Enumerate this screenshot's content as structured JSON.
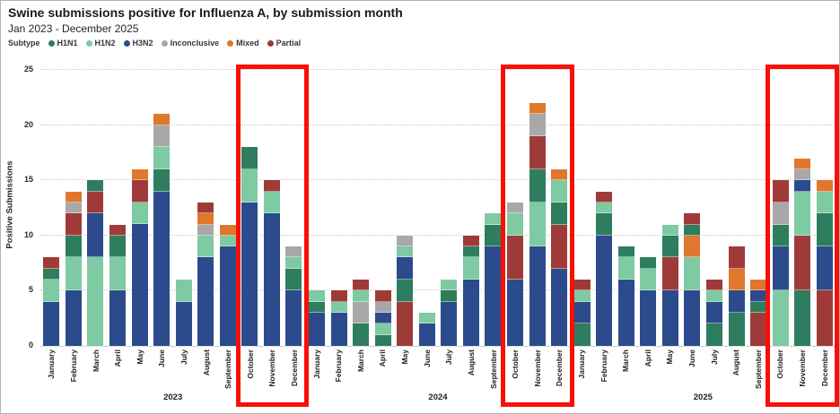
{
  "header": {
    "title": "Swine submissions positive for Influenza A, by submission month",
    "subtitle": "Jan 2023 - December 2025"
  },
  "legend": {
    "label": "Subtype",
    "items": [
      {
        "name": "H1N1",
        "color": "#2e7d5e"
      },
      {
        "name": "H1N2",
        "color": "#7ecaa2"
      },
      {
        "name": "H3N2",
        "color": "#2b4b8c"
      },
      {
        "name": "Inconclusive",
        "color": "#a8a8a8"
      },
      {
        "name": "Mixed",
        "color": "#e0772e"
      },
      {
        "name": "Partial",
        "color": "#9e3b39"
      }
    ]
  },
  "y_axis": {
    "title": "Positive Submissions",
    "ticks": [
      0,
      5,
      10,
      15,
      20,
      25
    ],
    "max": 25
  },
  "highlight": {
    "color": "#f81007",
    "months": [
      "October",
      "November",
      "December"
    ]
  },
  "chart_data": {
    "type": "bar",
    "stacked": true,
    "title": "Swine submissions positive for Influenza A, by submission month",
    "xlabel": "",
    "ylabel": "Positive Submissions",
    "ylim": [
      0,
      25
    ],
    "grid": "horizontal-dotted",
    "legend_position": "top",
    "legend_entries": [
      "H1N1",
      "H1N2",
      "H3N2",
      "Inconclusive",
      "Mixed",
      "Partial"
    ],
    "colors": {
      "H1N1": "#2e7d5e",
      "H1N2": "#7ecaa2",
      "H3N2": "#2b4b8c",
      "Inconclusive": "#a8a8a8",
      "Mixed": "#e0772e",
      "Partial": "#9e3b39"
    },
    "segment_order_note": "segments listed bottom-to-top, sorted by value descending within each bar",
    "years": [
      {
        "year": "2023",
        "months": [
          {
            "month": "January",
            "total": 8,
            "segments": [
              [
                "H3N2",
                4
              ],
              [
                "H1N2",
                2
              ],
              [
                "H1N1",
                1
              ],
              [
                "Partial",
                1
              ]
            ]
          },
          {
            "month": "February",
            "total": 14,
            "segments": [
              [
                "H3N2",
                5
              ],
              [
                "H1N2",
                3
              ],
              [
                "H1N1",
                2
              ],
              [
                "Partial",
                2
              ],
              [
                "Inconclusive",
                1
              ],
              [
                "Mixed",
                1
              ]
            ]
          },
          {
            "month": "March",
            "total": 15,
            "segments": [
              [
                "H1N2",
                8
              ],
              [
                "H3N2",
                4
              ],
              [
                "Partial",
                2
              ],
              [
                "H1N1",
                1
              ]
            ]
          },
          {
            "month": "April",
            "total": 11,
            "segments": [
              [
                "H3N2",
                5
              ],
              [
                "H1N2",
                3
              ],
              [
                "H1N1",
                2
              ],
              [
                "Partial",
                1
              ]
            ]
          },
          {
            "month": "May",
            "total": 16,
            "segments": [
              [
                "H3N2",
                11
              ],
              [
                "H1N2",
                2
              ],
              [
                "Partial",
                2
              ],
              [
                "Mixed",
                1
              ]
            ]
          },
          {
            "month": "June",
            "total": 21,
            "segments": [
              [
                "H3N2",
                14
              ],
              [
                "H1N1",
                2
              ],
              [
                "H1N2",
                2
              ],
              [
                "Inconclusive",
                2
              ],
              [
                "Mixed",
                1
              ]
            ]
          },
          {
            "month": "July",
            "total": 6,
            "segments": [
              [
                "H3N2",
                4
              ],
              [
                "H1N2",
                2
              ]
            ]
          },
          {
            "month": "August",
            "total": 13,
            "segments": [
              [
                "H3N2",
                8
              ],
              [
                "H1N2",
                2
              ],
              [
                "Inconclusive",
                1
              ],
              [
                "Mixed",
                1
              ],
              [
                "Partial",
                1
              ]
            ]
          },
          {
            "month": "September",
            "total": 11,
            "segments": [
              [
                "H3N2",
                9
              ],
              [
                "H1N2",
                1
              ],
              [
                "Mixed",
                1
              ]
            ]
          },
          {
            "month": "October",
            "total": 18,
            "segments": [
              [
                "H3N2",
                13
              ],
              [
                "H1N2",
                3
              ],
              [
                "H1N1",
                2
              ]
            ]
          },
          {
            "month": "November",
            "total": 15,
            "segments": [
              [
                "H3N2",
                12
              ],
              [
                "H1N2",
                2
              ],
              [
                "Partial",
                1
              ]
            ]
          },
          {
            "month": "December",
            "total": 9,
            "segments": [
              [
                "H3N2",
                5
              ],
              [
                "H1N1",
                2
              ],
              [
                "H1N2",
                1
              ],
              [
                "Inconclusive",
                1
              ]
            ]
          }
        ]
      },
      {
        "year": "2024",
        "months": [
          {
            "month": "January",
            "total": 5,
            "segments": [
              [
                "H3N2",
                3
              ],
              [
                "H1N1",
                1
              ],
              [
                "H1N2",
                1
              ]
            ]
          },
          {
            "month": "February",
            "total": 5,
            "segments": [
              [
                "H3N2",
                3
              ],
              [
                "H1N2",
                1
              ],
              [
                "Partial",
                1
              ]
            ]
          },
          {
            "month": "March",
            "total": 6,
            "segments": [
              [
                "H1N1",
                2
              ],
              [
                "Inconclusive",
                2
              ],
              [
                "H1N2",
                1
              ],
              [
                "Partial",
                1
              ]
            ]
          },
          {
            "month": "April",
            "total": 5,
            "segments": [
              [
                "H1N1",
                1
              ],
              [
                "H1N2",
                1
              ],
              [
                "H3N2",
                1
              ],
              [
                "Inconclusive",
                1
              ],
              [
                "Partial",
                1
              ]
            ]
          },
          {
            "month": "May",
            "total": 10,
            "segments": [
              [
                "Partial",
                4
              ],
              [
                "H1N1",
                2
              ],
              [
                "H3N2",
                2
              ],
              [
                "H1N2",
                1
              ],
              [
                "Inconclusive",
                1
              ]
            ]
          },
          {
            "month": "June",
            "total": 3,
            "segments": [
              [
                "H3N2",
                2
              ],
              [
                "H1N2",
                1
              ]
            ]
          },
          {
            "month": "July",
            "total": 6,
            "segments": [
              [
                "H3N2",
                4
              ],
              [
                "H1N1",
                1
              ],
              [
                "H1N2",
                1
              ]
            ]
          },
          {
            "month": "August",
            "total": 10,
            "segments": [
              [
                "H3N2",
                6
              ],
              [
                "H1N2",
                2
              ],
              [
                "H1N1",
                1
              ],
              [
                "Partial",
                1
              ]
            ]
          },
          {
            "month": "September",
            "total": 12,
            "segments": [
              [
                "H3N2",
                9
              ],
              [
                "H1N1",
                2
              ],
              [
                "H1N2",
                1
              ]
            ]
          },
          {
            "month": "October",
            "total": 13,
            "segments": [
              [
                "H3N2",
                6
              ],
              [
                "Partial",
                4
              ],
              [
                "H1N2",
                2
              ],
              [
                "Inconclusive",
                1
              ]
            ]
          },
          {
            "month": "November",
            "total": 22,
            "segments": [
              [
                "H3N2",
                9
              ],
              [
                "H1N2",
                4
              ],
              [
                "H1N1",
                3
              ],
              [
                "Partial",
                3
              ],
              [
                "Inconclusive",
                2
              ],
              [
                "Mixed",
                1
              ]
            ]
          },
          {
            "month": "December",
            "total": 16,
            "segments": [
              [
                "H3N2",
                7
              ],
              [
                "Partial",
                4
              ],
              [
                "H1N1",
                2
              ],
              [
                "H1N2",
                2
              ],
              [
                "Mixed",
                1
              ]
            ]
          }
        ]
      },
      {
        "year": "2025",
        "months": [
          {
            "month": "January",
            "total": 6,
            "segments": [
              [
                "H1N1",
                2
              ],
              [
                "H3N2",
                2
              ],
              [
                "H1N2",
                1
              ],
              [
                "Partial",
                1
              ]
            ]
          },
          {
            "month": "February",
            "total": 14,
            "segments": [
              [
                "H3N2",
                10
              ],
              [
                "H1N1",
                2
              ],
              [
                "H1N2",
                1
              ],
              [
                "Partial",
                1
              ]
            ]
          },
          {
            "month": "March",
            "total": 9,
            "segments": [
              [
                "H3N2",
                6
              ],
              [
                "H1N2",
                2
              ],
              [
                "H1N1",
                1
              ]
            ]
          },
          {
            "month": "April",
            "total": 8,
            "segments": [
              [
                "H3N2",
                5
              ],
              [
                "H1N2",
                2
              ],
              [
                "H1N1",
                1
              ]
            ]
          },
          {
            "month": "May",
            "total": 11,
            "segments": [
              [
                "H3N2",
                5
              ],
              [
                "Partial",
                3
              ],
              [
                "H1N1",
                2
              ],
              [
                "H1N2",
                1
              ]
            ]
          },
          {
            "month": "June",
            "total": 12,
            "segments": [
              [
                "H3N2",
                5
              ],
              [
                "H1N2",
                3
              ],
              [
                "Mixed",
                2
              ],
              [
                "H1N1",
                1
              ],
              [
                "Partial",
                1
              ]
            ]
          },
          {
            "month": "July",
            "total": 6,
            "segments": [
              [
                "H1N1",
                2
              ],
              [
                "H3N2",
                2
              ],
              [
                "H1N2",
                1
              ],
              [
                "Partial",
                1
              ]
            ]
          },
          {
            "month": "August",
            "total": 9,
            "segments": [
              [
                "H1N1",
                3
              ],
              [
                "H3N2",
                2
              ],
              [
                "Mixed",
                2
              ],
              [
                "Partial",
                2
              ]
            ]
          },
          {
            "month": "September",
            "total": 6,
            "segments": [
              [
                "Partial",
                3
              ],
              [
                "H1N1",
                1
              ],
              [
                "H3N2",
                1
              ],
              [
                "Mixed",
                1
              ]
            ]
          },
          {
            "month": "October",
            "total": 15,
            "segments": [
              [
                "H1N2",
                5
              ],
              [
                "H3N2",
                4
              ],
              [
                "H1N1",
                2
              ],
              [
                "Inconclusive",
                2
              ],
              [
                "Partial",
                2
              ]
            ]
          },
          {
            "month": "November",
            "total": 17,
            "segments": [
              [
                "H1N1",
                5
              ],
              [
                "Partial",
                5
              ],
              [
                "H1N2",
                4
              ],
              [
                "H3N2",
                1
              ],
              [
                "Inconclusive",
                1
              ],
              [
                "Mixed",
                1
              ]
            ]
          },
          {
            "month": "December",
            "total": 15,
            "segments": [
              [
                "Partial",
                5
              ],
              [
                "H3N2",
                4
              ],
              [
                "H1N1",
                3
              ],
              [
                "H1N2",
                2
              ],
              [
                "Mixed",
                1
              ]
            ]
          }
        ]
      }
    ]
  }
}
